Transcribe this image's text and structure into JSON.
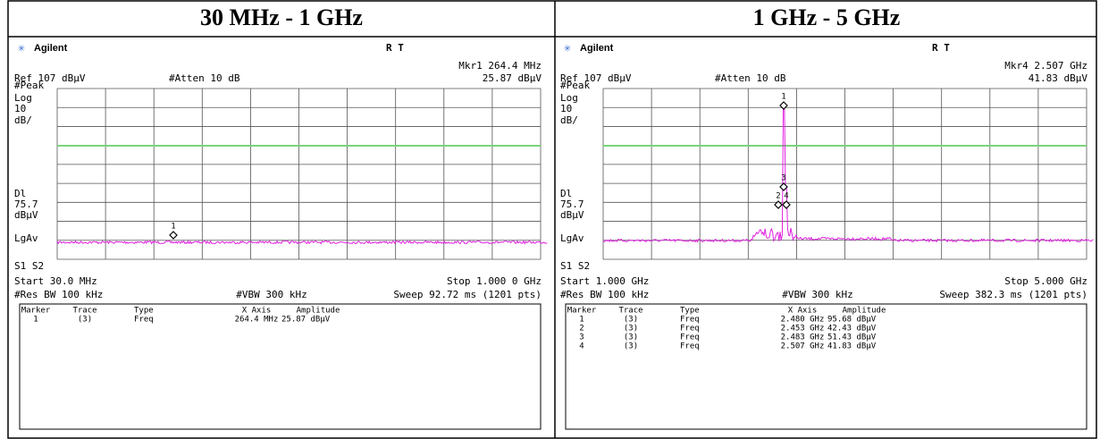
{
  "table": {
    "headers": [
      "30 MHz - 1 GHz",
      "1 GHz - 5 GHz"
    ]
  },
  "panels": [
    {
      "brand": "Agilent",
      "mode": "R  T",
      "marker_readout": "Mkr1  264.4 MHz",
      "ref": "Ref 107 dBµV",
      "atten": "#Atten 10 dB",
      "marker_amplitude": "25.87 dBµV",
      "side_labels": [
        "#Peak",
        "Log",
        "10",
        "dB/",
        "Dl",
        "75.7",
        "dBµV",
        "LgAv",
        "S1  S2"
      ],
      "start": "Start 30.0 MHz",
      "stop": "Stop 1.000 0 GHz",
      "res_bw": "#Res BW 100 kHz",
      "vbw": "#VBW 300 kHz",
      "sweep": "Sweep 92.72 ms (1201 pts)",
      "plot_markers": [
        "1"
      ],
      "marker_table": {
        "columns": [
          "Marker",
          "Trace",
          "Type",
          "X Axis",
          "Amplitude"
        ],
        "rows": [
          [
            "1",
            "(3)",
            "Freq",
            "264.4 MHz",
            "25.87 dBµV"
          ]
        ]
      }
    },
    {
      "brand": "Agilent",
      "mode": "R  T",
      "marker_readout": "Mkr4  2.507 GHz",
      "ref": "Ref 107 dBµV",
      "atten": "#Atten 10 dB",
      "marker_amplitude": "41.83 dBµV",
      "side_labels": [
        "#Peak",
        "Log",
        "10",
        "dB/",
        "Dl",
        "75.7",
        "dBµV",
        "LgAv",
        "S1  S2"
      ],
      "start": "Start 1.000 GHz",
      "stop": "Stop 5.000 GHz",
      "res_bw": "#Res BW 100 kHz",
      "vbw": "#VBW 300 kHz",
      "sweep": "Sweep 382.3 ms (1201 pts)",
      "plot_markers": [
        "1",
        "2",
        "3",
        "4"
      ],
      "marker_table": {
        "columns": [
          "Marker",
          "Trace",
          "Type",
          "X Axis",
          "Amplitude"
        ],
        "rows": [
          [
            "1",
            "(3)",
            "Freq",
            "2.480 GHz",
            "95.68 dBµV"
          ],
          [
            "2",
            "(3)",
            "Freq",
            "2.453 GHz",
            "42.43 dBµV"
          ],
          [
            "3",
            "(3)",
            "Freq",
            "2.483 GHz",
            "51.43 dBµV"
          ],
          [
            "4",
            "(3)",
            "Freq",
            "2.507 GHz",
            "41.83 dBµV"
          ]
        ]
      }
    }
  ]
}
